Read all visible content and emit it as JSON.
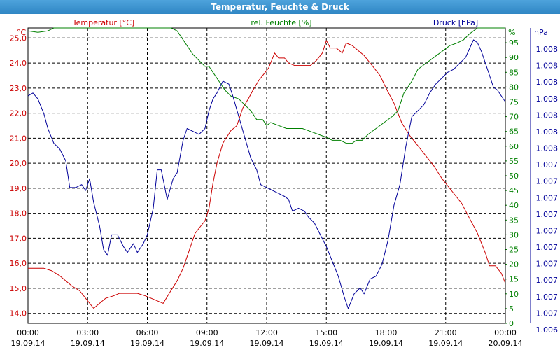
{
  "window": {
    "title": "Temperatur, Feuchte & Druck"
  },
  "colors": {
    "temperature": "#cc0000",
    "humidity": "#008000",
    "pressure": "#000099"
  },
  "chart_data": {
    "type": "line",
    "title": "Temperatur, Feuchte & Druck",
    "grid": true,
    "x": {
      "ticks": [
        {
          "time": "00:00",
          "date": "19.09.14"
        },
        {
          "time": "03:00",
          "date": "19.09.14"
        },
        {
          "time": "06:00",
          "date": "19.09.14"
        },
        {
          "time": "09:00",
          "date": "19.09.14"
        },
        {
          "time": "12:00",
          "date": "19.09.14"
        },
        {
          "time": "15:00",
          "date": "19.09.14"
        },
        {
          "time": "18:00",
          "date": "19.09.14"
        },
        {
          "time": "21:00",
          "date": "19.09.14"
        },
        {
          "time": "00:00",
          "date": "20.09.14"
        }
      ],
      "range_hours": [
        0,
        24
      ]
    },
    "axes": {
      "temperature": {
        "label": "Temperatur [°C]",
        "unit": "°C",
        "ylim": [
          13.6,
          25.4
        ],
        "ticks": [
          "14,0",
          "15,0",
          "16,0",
          "17,0",
          "18,0",
          "19,0",
          "20,0",
          "21,0",
          "22,0",
          "23,0",
          "24,0",
          "25,0"
        ]
      },
      "humidity": {
        "label": "rel. Feuchte [%]",
        "unit": "%",
        "ylim": [
          0,
          100
        ],
        "ticks": [
          "0",
          "5",
          "10",
          "15",
          "20",
          "25",
          "30",
          "35",
          "40",
          "45",
          "50",
          "55",
          "60",
          "65",
          "70",
          "75",
          "80",
          "85",
          "90",
          "95"
        ]
      },
      "pressure": {
        "label": "Druck [hPa]",
        "unit": "hPa",
        "ylim": [
          0,
          100
        ],
        "ticks": [
          "1.006",
          "1.007",
          "1.007",
          "1.007",
          "1.007",
          "1.007",
          "1.007",
          "1.007",
          "1.007",
          "1.007",
          "1.007",
          "1.008",
          "1.008",
          "1.008",
          "1.008",
          "1.008",
          "1.008",
          "1.008"
        ]
      }
    },
    "series": [
      {
        "name": "Temperatur [°C]",
        "axis": "temperature",
        "points": [
          [
            0,
            15.8
          ],
          [
            0.8,
            15.8
          ],
          [
            1.2,
            15.7
          ],
          [
            1.6,
            15.5
          ],
          [
            2.2,
            15.1
          ],
          [
            2.6,
            14.9
          ],
          [
            3.0,
            14.5
          ],
          [
            3.3,
            14.2
          ],
          [
            3.6,
            14.4
          ],
          [
            3.9,
            14.6
          ],
          [
            4.3,
            14.7
          ],
          [
            4.6,
            14.8
          ],
          [
            5.0,
            14.8
          ],
          [
            5.5,
            14.8
          ],
          [
            5.9,
            14.7
          ],
          [
            6.2,
            14.6
          ],
          [
            6.5,
            14.5
          ],
          [
            6.8,
            14.4
          ],
          [
            7.1,
            14.8
          ],
          [
            7.5,
            15.3
          ],
          [
            7.8,
            15.8
          ],
          [
            8.1,
            16.5
          ],
          [
            8.4,
            17.2
          ],
          [
            8.7,
            17.5
          ],
          [
            8.9,
            17.7
          ],
          [
            9.1,
            18.2
          ],
          [
            9.3,
            19.2
          ],
          [
            9.5,
            20.0
          ],
          [
            9.8,
            20.8
          ],
          [
            10.2,
            21.3
          ],
          [
            10.5,
            21.5
          ],
          [
            10.8,
            22.2
          ],
          [
            11.1,
            22.6
          ],
          [
            11.3,
            22.9
          ],
          [
            11.6,
            23.3
          ],
          [
            11.8,
            23.5
          ],
          [
            12.1,
            23.8
          ],
          [
            12.4,
            24.4
          ],
          [
            12.6,
            24.2
          ],
          [
            12.9,
            24.2
          ],
          [
            13.1,
            24.0
          ],
          [
            13.4,
            23.9
          ],
          [
            13.7,
            23.9
          ],
          [
            13.9,
            23.9
          ],
          [
            14.2,
            23.9
          ],
          [
            14.5,
            24.1
          ],
          [
            14.8,
            24.4
          ],
          [
            15.0,
            24.9
          ],
          [
            15.2,
            24.6
          ],
          [
            15.5,
            24.6
          ],
          [
            15.8,
            24.4
          ],
          [
            16.0,
            24.8
          ],
          [
            16.3,
            24.7
          ],
          [
            16.6,
            24.5
          ],
          [
            16.9,
            24.3
          ],
          [
            17.3,
            23.9
          ],
          [
            17.7,
            23.5
          ],
          [
            18.0,
            23.0
          ],
          [
            18.4,
            22.4
          ],
          [
            18.8,
            21.6
          ],
          [
            19.2,
            21.1
          ],
          [
            19.6,
            20.7
          ],
          [
            20.0,
            20.3
          ],
          [
            20.4,
            19.9
          ],
          [
            20.8,
            19.4
          ],
          [
            21.3,
            18.9
          ],
          [
            21.8,
            18.4
          ],
          [
            22.2,
            17.8
          ],
          [
            22.6,
            17.2
          ],
          [
            23.0,
            16.4
          ],
          [
            23.2,
            15.9
          ],
          [
            23.5,
            15.9
          ],
          [
            23.8,
            15.6
          ],
          [
            24,
            15.2
          ]
        ]
      },
      {
        "name": "rel. Feuchte [%]",
        "axis": "humidity",
        "points": [
          [
            0,
            99
          ],
          [
            0.5,
            98.5
          ],
          [
            1.0,
            99
          ],
          [
            1.3,
            100
          ],
          [
            7.2,
            100
          ],
          [
            7.5,
            99
          ],
          [
            7.7,
            97
          ],
          [
            8.0,
            94
          ],
          [
            8.3,
            91
          ],
          [
            8.6,
            89
          ],
          [
            8.9,
            87
          ],
          [
            9.1,
            87
          ],
          [
            9.3,
            85
          ],
          [
            9.6,
            82
          ],
          [
            9.9,
            79
          ],
          [
            10.2,
            77
          ],
          [
            10.6,
            76
          ],
          [
            10.9,
            74
          ],
          [
            11.2,
            72
          ],
          [
            11.5,
            69
          ],
          [
            11.8,
            69
          ],
          [
            12.0,
            67
          ],
          [
            12.2,
            68
          ],
          [
            12.6,
            67
          ],
          [
            13.0,
            66
          ],
          [
            13.4,
            66
          ],
          [
            13.8,
            66
          ],
          [
            14.2,
            65
          ],
          [
            14.6,
            64
          ],
          [
            15.0,
            63
          ],
          [
            15.3,
            62
          ],
          [
            15.7,
            62
          ],
          [
            16.0,
            61
          ],
          [
            16.3,
            61
          ],
          [
            16.5,
            62
          ],
          [
            16.8,
            62
          ],
          [
            17.1,
            64
          ],
          [
            17.5,
            66
          ],
          [
            17.9,
            68
          ],
          [
            18.3,
            70
          ],
          [
            18.6,
            72
          ],
          [
            18.9,
            78
          ],
          [
            19.1,
            80
          ],
          [
            19.3,
            82
          ],
          [
            19.6,
            86
          ],
          [
            20.0,
            88
          ],
          [
            20.4,
            90
          ],
          [
            20.8,
            92
          ],
          [
            21.2,
            94
          ],
          [
            21.6,
            95
          ],
          [
            21.9,
            96
          ],
          [
            22.2,
            98
          ],
          [
            22.4,
            99
          ],
          [
            22.6,
            100
          ],
          [
            24,
            100
          ]
        ]
      },
      {
        "name": "Druck [hPa]",
        "axis": "pressure",
        "points": [
          [
            0,
            77
          ],
          [
            0.25,
            78
          ],
          [
            0.5,
            76
          ],
          [
            0.8,
            71
          ],
          [
            1.0,
            66
          ],
          [
            1.3,
            61
          ],
          [
            1.6,
            59
          ],
          [
            1.9,
            55
          ],
          [
            2.1,
            46
          ],
          [
            2.4,
            46
          ],
          [
            2.7,
            47
          ],
          [
            2.9,
            45
          ],
          [
            3.1,
            49
          ],
          [
            3.3,
            41
          ],
          [
            3.6,
            33
          ],
          [
            3.8,
            25
          ],
          [
            4.0,
            23
          ],
          [
            4.2,
            30
          ],
          [
            4.5,
            30
          ],
          [
            4.8,
            26
          ],
          [
            5.0,
            24
          ],
          [
            5.3,
            27
          ],
          [
            5.5,
            24
          ],
          [
            5.8,
            27
          ],
          [
            6.0,
            30
          ],
          [
            6.3,
            39
          ],
          [
            6.5,
            52
          ],
          [
            6.7,
            52
          ],
          [
            7.0,
            42
          ],
          [
            7.3,
            49
          ],
          [
            7.5,
            51
          ],
          [
            7.8,
            62
          ],
          [
            8.0,
            66
          ],
          [
            8.3,
            65
          ],
          [
            8.6,
            64
          ],
          [
            8.9,
            66
          ],
          [
            9.1,
            72
          ],
          [
            9.3,
            76
          ],
          [
            9.5,
            78
          ],
          [
            9.8,
            82
          ],
          [
            10.1,
            81
          ],
          [
            10.3,
            77
          ],
          [
            10.6,
            70
          ],
          [
            10.9,
            63
          ],
          [
            11.2,
            56
          ],
          [
            11.5,
            52
          ],
          [
            11.7,
            47
          ],
          [
            12.0,
            46
          ],
          [
            12.3,
            45
          ],
          [
            12.6,
            44
          ],
          [
            12.9,
            43
          ],
          [
            13.1,
            42
          ],
          [
            13.3,
            38
          ],
          [
            13.6,
            39
          ],
          [
            13.9,
            38
          ],
          [
            14.1,
            36
          ],
          [
            14.4,
            34
          ],
          [
            14.7,
            30
          ],
          [
            15.0,
            26
          ],
          [
            15.3,
            21
          ],
          [
            15.6,
            16
          ],
          [
            15.9,
            9
          ],
          [
            16.1,
            5
          ],
          [
            16.4,
            10
          ],
          [
            16.7,
            12
          ],
          [
            16.9,
            10
          ],
          [
            17.2,
            15
          ],
          [
            17.5,
            16
          ],
          [
            17.8,
            20
          ],
          [
            18.1,
            28
          ],
          [
            18.4,
            40
          ],
          [
            18.7,
            47
          ],
          [
            19.0,
            60
          ],
          [
            19.3,
            70
          ],
          [
            19.6,
            72
          ],
          [
            19.9,
            74
          ],
          [
            20.2,
            78
          ],
          [
            20.5,
            81
          ],
          [
            20.8,
            83
          ],
          [
            21.1,
            85
          ],
          [
            21.4,
            86
          ],
          [
            21.7,
            88
          ],
          [
            22.0,
            90
          ],
          [
            22.2,
            93
          ],
          [
            22.4,
            96
          ],
          [
            22.6,
            95
          ],
          [
            22.8,
            92
          ],
          [
            23.0,
            88
          ],
          [
            23.2,
            84
          ],
          [
            23.4,
            80
          ],
          [
            23.6,
            79
          ],
          [
            23.8,
            77
          ],
          [
            24,
            75
          ]
        ]
      }
    ]
  }
}
